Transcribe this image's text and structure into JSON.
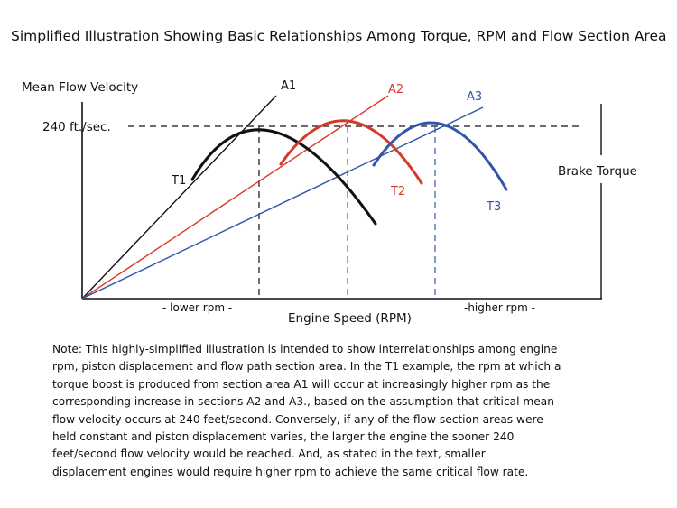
{
  "title": "Simplified Illustration Showing Basic Relationships Among Torque, RPM and Flow Section Area",
  "labels": {
    "y_left": "Mean Flow Velocity",
    "y_right": "Brake Torque",
    "x_axis": "Engine Speed (RPM)",
    "x_low": "- lower rpm -",
    "x_high": "-higher rpm -",
    "velocity_ref": "240 ft./sec."
  },
  "lines": [
    {
      "name": "A1",
      "color": "#111111"
    },
    {
      "name": "A2",
      "color": "#d63a26"
    },
    {
      "name": "A3",
      "color": "#3355aa"
    }
  ],
  "curves": [
    {
      "name": "T1",
      "color": "#111111"
    },
    {
      "name": "T2",
      "color": "#d63a26"
    },
    {
      "name": "T3",
      "color": "#3355aa"
    }
  ],
  "note_lines": [
    "Note: This highly-simplified illustration is intended to show interrelationships among engine",
    "rpm, piston displacement and flow path section area.  In the T1 example, the rpm at which a",
    "torque boost is produced from section area A1 will occur at increasingly higher rpm as the",
    "corresponding increase in sections A2 and A3., based on the assumption that critical mean",
    "flow velocity occurs at 240 feet/second.  Conversely, if any of the flow section areas were",
    "held constant and piston displacement varies, the larger the engine the sooner 240",
    "feet/second flow velocity would be reached.  And, as stated in the text, smaller",
    "displacement engines would require higher rpm to achieve the same critical flow rate."
  ]
}
